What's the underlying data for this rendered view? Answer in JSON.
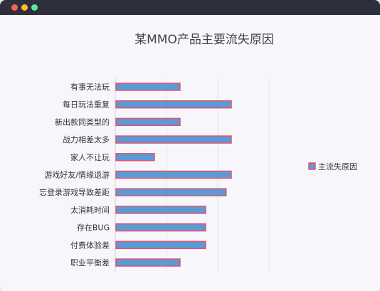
{
  "window": {
    "controls": [
      "close",
      "minimize",
      "maximize"
    ]
  },
  "chart_data": {
    "type": "bar",
    "orientation": "horizontal",
    "title": "某MMO产品主要流失原因",
    "categories": [
      "有事无法玩",
      "每日玩法重复",
      "新出款同类型的",
      "战力相差太多",
      "家人不让玩",
      "游戏好友/情缘退游",
      "忘登录游戏导致差距",
      "太消耗时间",
      "存在BUG",
      "付费体验差",
      "职业平衡差"
    ],
    "series": [
      {
        "name": "主流失原因",
        "values": [
          25,
          45,
          25,
          45,
          15,
          45,
          43,
          35,
          35,
          35,
          25
        ]
      }
    ],
    "xlim": [
      0,
      60
    ],
    "grid": true,
    "legend_position": "right",
    "colors": {
      "bar_fill": "#5b9bd5",
      "bar_stroke": "#e8506e",
      "grid": "#e4e4ea"
    }
  }
}
